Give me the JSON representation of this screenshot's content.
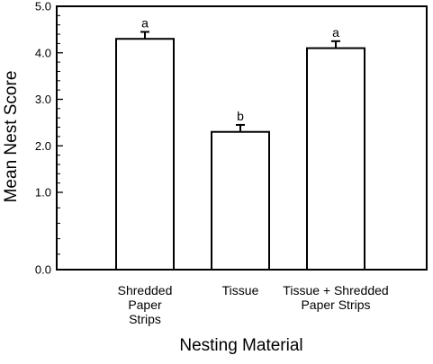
{
  "chart_data": {
    "type": "bar",
    "xlabel": "Nesting Material",
    "ylabel": "Mean Nest Score",
    "ylim": [
      0,
      5
    ],
    "y_ticks": [
      {
        "value": 0.0,
        "label": "0.0"
      },
      {
        "value": 1.0,
        "label": "1.0"
      },
      {
        "value": 2.0,
        "label": "2.0"
      },
      {
        "value": 3.0,
        "label": "3.0"
      },
      {
        "value": 4.0,
        "label": "4.0"
      },
      {
        "value": 5.0,
        "label": "5.0"
      }
    ],
    "categories": [
      [
        "Shredded",
        "Paper",
        "Strips"
      ],
      [
        "Tissue"
      ],
      [
        "Tissue + Shredded",
        "Paper Strips"
      ]
    ],
    "values": [
      4.3,
      2.3,
      4.1
    ],
    "errors": [
      0.15,
      0.15,
      0.15
    ],
    "significance_letters": [
      "a",
      "b",
      "a"
    ],
    "grid": false,
    "legend": "none"
  }
}
